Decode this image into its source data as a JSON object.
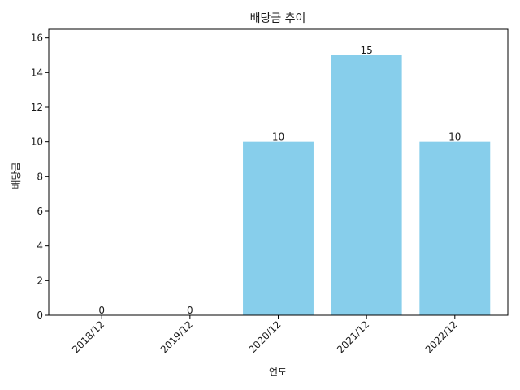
{
  "chart_data": {
    "type": "bar",
    "title": "배당금 추이",
    "xlabel": "연도",
    "ylabel": "배당금",
    "categories": [
      "2018/12",
      "2019/12",
      "2020/12",
      "2021/12",
      "2022/12"
    ],
    "values": [
      0,
      0,
      10,
      15,
      10
    ],
    "data_labels": [
      "0",
      "0",
      "10",
      "15",
      "10"
    ],
    "ylim": [
      0,
      16.5
    ],
    "yticks": [
      0,
      2,
      4,
      6,
      8,
      10,
      12,
      14,
      16
    ],
    "grid": false,
    "legend": "none",
    "bar_color": "#87CEEB",
    "x_tick_rotation_deg": 45
  }
}
